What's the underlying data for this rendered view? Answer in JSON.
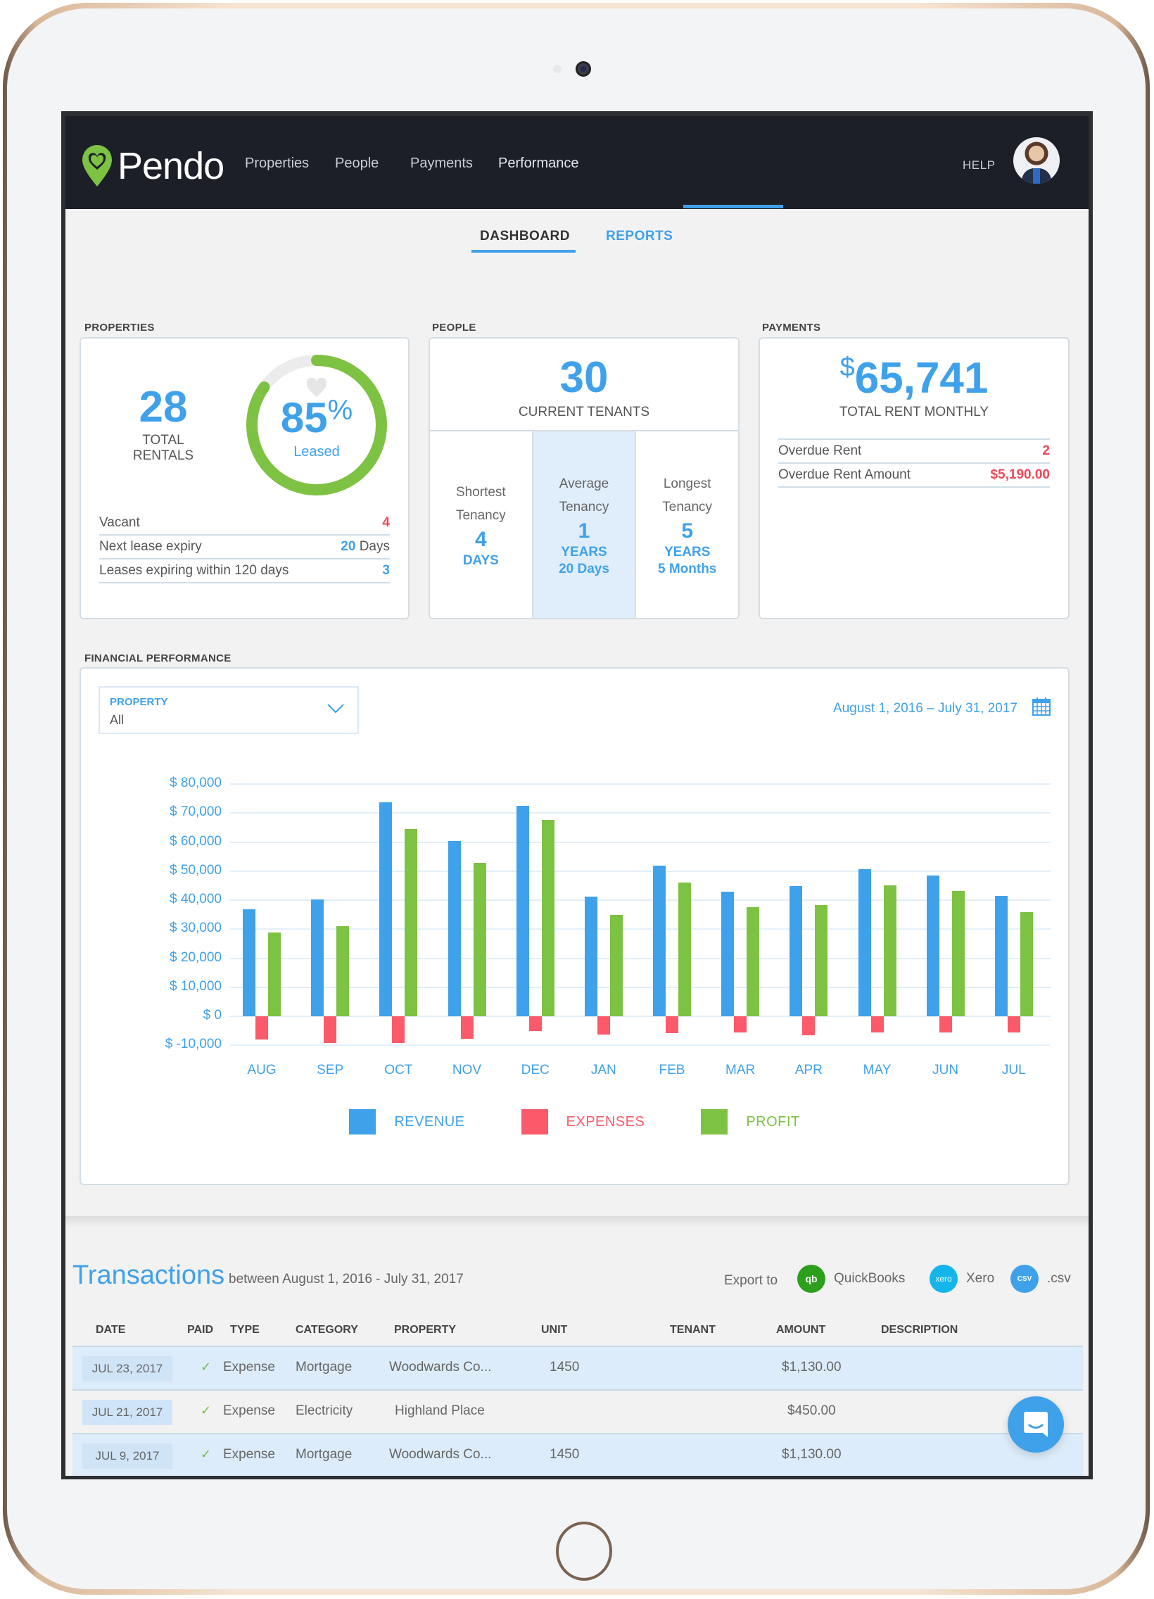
{
  "device": {
    "frame": "tablet-gold"
  },
  "nav": {
    "brand": "Pendo",
    "items": [
      {
        "label": "Properties",
        "active": false
      },
      {
        "label": "People",
        "active": false
      },
      {
        "label": "Payments",
        "active": false
      },
      {
        "label": "Performance",
        "active": true
      }
    ],
    "help": "HELP",
    "accent_color": "#3fa1ea",
    "bar_color": "#1c1f28"
  },
  "subtabs": [
    {
      "label": "DASHBOARD",
      "active": true
    },
    {
      "label": "REPORTS",
      "active": false
    }
  ],
  "properties": {
    "section_label": "PROPERTIES",
    "total": "28",
    "total_label_1": "TOTAL",
    "total_label_2": "RENTALS",
    "leased_pct": "85",
    "leased_pct_symbol": "%",
    "leased_label": "Leased",
    "rows": [
      {
        "label": "Vacant",
        "value": "4",
        "unit": ""
      },
      {
        "label": "Next lease expiry",
        "value": "20",
        "unit": " Days"
      },
      {
        "label": "Leases expiring within 120 days",
        "value": "3",
        "unit": ""
      }
    ]
  },
  "people": {
    "section_label": "PEOPLE",
    "count": "30",
    "count_label": "CURRENT TENANTS",
    "tenancy": [
      {
        "title_1": "Shortest",
        "title_2": "Tenancy",
        "number": "4",
        "unit": "DAYS",
        "extra": ""
      },
      {
        "title_1": "Average",
        "title_2": "Tenancy",
        "number": "1",
        "unit": "YEARS",
        "extra": "20 Days"
      },
      {
        "title_1": "Longest",
        "title_2": "Tenancy",
        "number": "5",
        "unit": "YEARS",
        "extra": "5 Months"
      }
    ]
  },
  "payments": {
    "section_label": "PAYMENTS",
    "currency": "$",
    "amount": "65,741",
    "amount_label": "TOTAL RENT MONTHLY",
    "rows": [
      {
        "label": "Overdue Rent",
        "value": "2"
      },
      {
        "label": "Overdue Rent Amount",
        "value": "$5,190.00"
      }
    ]
  },
  "financial": {
    "section_label": "FINANCIAL PERFORMANCE",
    "property_filter": {
      "label": "PROPERTY",
      "value": "All"
    },
    "date_range": "August 1, 2016 – July 31, 2017"
  },
  "chart_data": {
    "type": "bar",
    "title": "Financial Performance",
    "xlabel": "",
    "ylabel": "",
    "categories": [
      "AUG",
      "SEP",
      "OCT",
      "NOV",
      "DEC",
      "JAN",
      "FEB",
      "MAR",
      "APR",
      "MAY",
      "JUN",
      "JUL"
    ],
    "series": [
      {
        "name": "REVENUE",
        "color": "#3fa1ea",
        "values": [
          36800,
          40200,
          73800,
          60400,
          72600,
          41100,
          51800,
          43000,
          44900,
          50600,
          48600,
          41400
        ]
      },
      {
        "name": "EXPENSES",
        "color": "#fa5a6a",
        "values": [
          -7900,
          -9300,
          -9300,
          -7700,
          -5100,
          -6200,
          -5700,
          -5600,
          -6600,
          -5500,
          -5500,
          -5500
        ]
      },
      {
        "name": "PROFIT",
        "color": "#7dc242",
        "values": [
          28900,
          31000,
          64600,
          52900,
          67600,
          35000,
          46100,
          37500,
          38200,
          45100,
          43200,
          35900
        ]
      }
    ],
    "y_ticks": [
      "$ 80,000",
      "$ 70,000",
      "$ 60,000",
      "$ 50,000",
      "$ 40,000",
      "$ 30,000",
      "$ 20,000",
      "$ 10,000",
      "$ 0",
      "$ -10,000"
    ],
    "ylim": [
      -10000,
      80000
    ],
    "grid": true,
    "legend_position": "bottom"
  },
  "transactions": {
    "title": "Transactions",
    "range": "between August 1, 2016 - July 31, 2017",
    "export_label": "Export to",
    "exports": [
      {
        "label": "QuickBooks",
        "icon": "qb",
        "color": "#2ca01c"
      },
      {
        "label": "Xero",
        "icon": "xero",
        "color": "#13b5ea"
      },
      {
        "label": ".csv",
        "icon": "csv",
        "color": "#3fa1ea"
      }
    ],
    "columns": [
      "DATE",
      "PAID",
      "TYPE",
      "CATEGORY",
      "PROPERTY",
      "UNIT",
      "TENANT",
      "AMOUNT",
      "DESCRIPTION"
    ],
    "rows": [
      {
        "date": "JUL 23, 2017",
        "paid": "✓",
        "type": "Expense",
        "category": "Mortgage",
        "property": "Woodwards Co...",
        "unit": "1450",
        "tenant": "",
        "amount": "$1,130.00",
        "description": ""
      },
      {
        "date": "JUL 21, 2017",
        "paid": "✓",
        "type": "Expense",
        "category": "Electricity",
        "property": "Highland Place",
        "unit": "",
        "tenant": "",
        "amount": "$450.00",
        "description": ""
      },
      {
        "date": "JUL 9, 2017",
        "paid": "✓",
        "type": "Expense",
        "category": "Mortgage",
        "property": "Woodwards Co...",
        "unit": "1450",
        "tenant": "",
        "amount": "$1,130.00",
        "description": ""
      }
    ]
  }
}
